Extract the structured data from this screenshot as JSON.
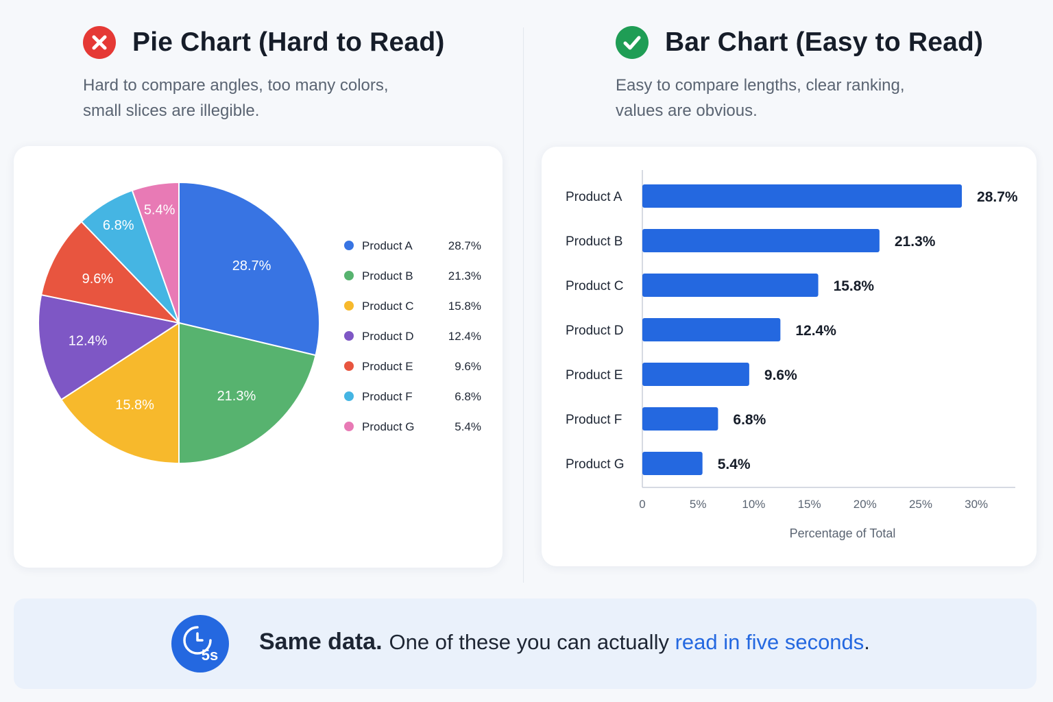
{
  "left": {
    "title": "Pie Chart (Hard to Read)",
    "subtitle": "Hard to compare angles, too many colors,\nsmall slices are illegible.",
    "icon": "x-circle-icon",
    "accent": "#e53935"
  },
  "right": {
    "title": "Bar Chart (Easy to Read)",
    "subtitle": "Easy to compare lengths, clear ranking,\nvalues are obvious.",
    "icon": "check-circle-icon",
    "accent": "#1f9d55"
  },
  "footer": {
    "strong": "Same data.",
    "text": "One of these you can actually ",
    "highlight": "read in five seconds",
    "end": ".",
    "icon": "timer-icon",
    "badge": "5s",
    "accent": "#2468e0"
  },
  "chart_data": [
    {
      "type": "pie",
      "categories": [
        "Product A",
        "Product B",
        "Product C",
        "Product D",
        "Product E",
        "Product F",
        "Product G"
      ],
      "values": [
        28.7,
        21.3,
        15.8,
        12.4,
        9.6,
        6.8,
        5.4
      ],
      "labels": [
        "28.7%",
        "21.3%",
        "15.8%",
        "12.4%",
        "9.6%",
        "6.8%",
        "5.4%"
      ],
      "colors": [
        "#3874e3",
        "#57b36f",
        "#f7b92c",
        "#7e57c5",
        "#e8553f",
        "#45b5e3",
        "#e87ab5"
      ],
      "legend": "right"
    },
    {
      "type": "bar",
      "orientation": "horizontal",
      "categories": [
        "Product A",
        "Product B",
        "Product C",
        "Product D",
        "Product E",
        "Product F",
        "Product G"
      ],
      "values": [
        28.7,
        21.3,
        15.8,
        12.4,
        9.6,
        6.8,
        5.4
      ],
      "labels": [
        "28.7%",
        "21.3%",
        "15.8%",
        "12.4%",
        "9.6%",
        "6.8%",
        "5.4%"
      ],
      "xlabel": "Percentage of Total",
      "xlim": [
        0,
        33.5
      ],
      "ticks": [
        0,
        5,
        10,
        15,
        20,
        25,
        30
      ],
      "tick_labels": [
        "0",
        "5%",
        "10%",
        "15%",
        "20%",
        "25%",
        "30%"
      ],
      "color": "#2468e0",
      "grid": false
    }
  ]
}
